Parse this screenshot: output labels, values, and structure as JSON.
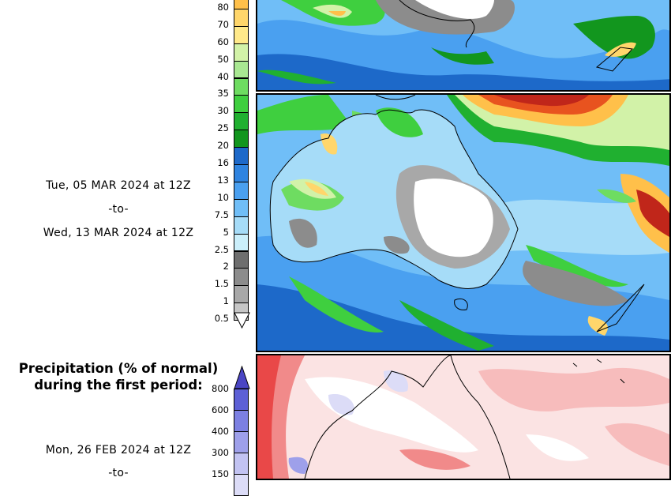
{
  "colorbar_rain": {
    "labels": [
      "80",
      "70",
      "60",
      "50",
      "40",
      "35",
      "30",
      "25",
      "20",
      "16",
      "13",
      "10",
      "7.5",
      "5",
      "2.5",
      "2",
      "1.5",
      "1",
      "0.5"
    ],
    "colors": [
      "#ffc04a",
      "#ffd66b",
      "#ffe98a",
      "#d2f2a8",
      "#a9e892",
      "#6edc61",
      "#3fcf3f",
      "#20b030",
      "#12961e",
      "#1d69c9",
      "#2f84e0",
      "#4aa0f0",
      "#70bef7",
      "#a6dcf8",
      "#cbeffb",
      "#6e6e6e",
      "#8c8c8c",
      "#a8a8a8",
      "#c6c6c6"
    ]
  },
  "period_second": {
    "start": "Tue, 05 MAR 2024 at 12Z",
    "to": "-to-",
    "end": "Wed, 13 MAR 2024 at 12Z"
  },
  "precip_panel": {
    "title_line1": "Precipitation (% of normal)",
    "title_line2": "during the first period:"
  },
  "colorbar_pct": {
    "labels": [
      "800",
      "600",
      "400",
      "300",
      "150"
    ],
    "colors": [
      "#5d60d6",
      "#7c80e2",
      "#9ea0ea",
      "#c2c3f2",
      "#dcdcf7"
    ]
  },
  "period_first": {
    "start": "Mon, 26 FEB 2024 at 12Z",
    "to": "-to-"
  }
}
